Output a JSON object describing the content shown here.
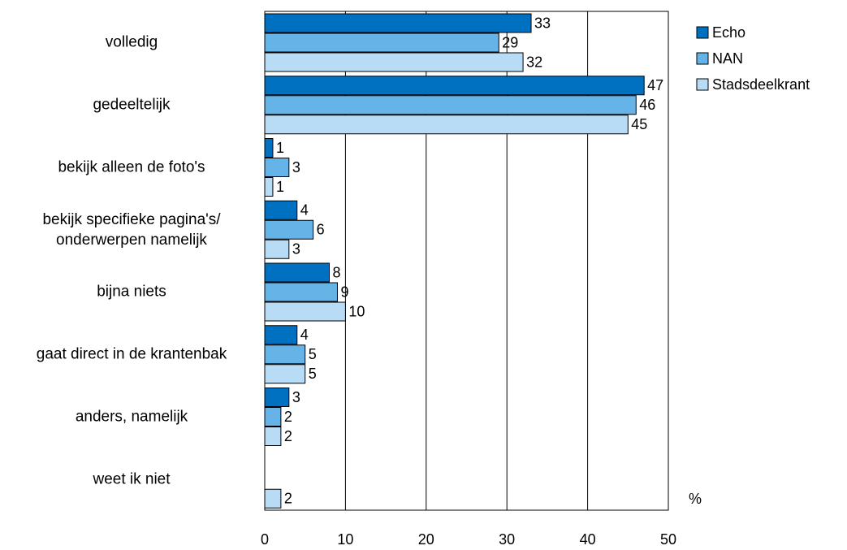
{
  "chart_data": {
    "type": "bar",
    "orientation": "horizontal",
    "categories": [
      "volledig",
      "gedeeltelijk",
      "bekijk alleen de foto's",
      "bekijk specifieke pagina's/ onderwerpen namelijk",
      "bijna niets",
      "gaat direct in de krantenbak",
      "anders, namelijk",
      "weet ik niet"
    ],
    "series": [
      {
        "name": "Echo",
        "color": "#0070c0",
        "values": [
          33,
          47,
          1,
          4,
          8,
          4,
          3,
          null
        ]
      },
      {
        "name": "NAN",
        "color": "#66b3e8",
        "values": [
          29,
          46,
          3,
          6,
          9,
          5,
          2,
          null
        ]
      },
      {
        "name": "Stadsdeelkrant",
        "color": "#b8dcf5",
        "values": [
          32,
          45,
          1,
          3,
          10,
          5,
          2,
          2
        ]
      }
    ],
    "xlim": [
      0,
      50
    ],
    "xticks": [
      0,
      10,
      20,
      30,
      40,
      50
    ],
    "x_label": "%",
    "grid": true,
    "legend": "top-right"
  }
}
